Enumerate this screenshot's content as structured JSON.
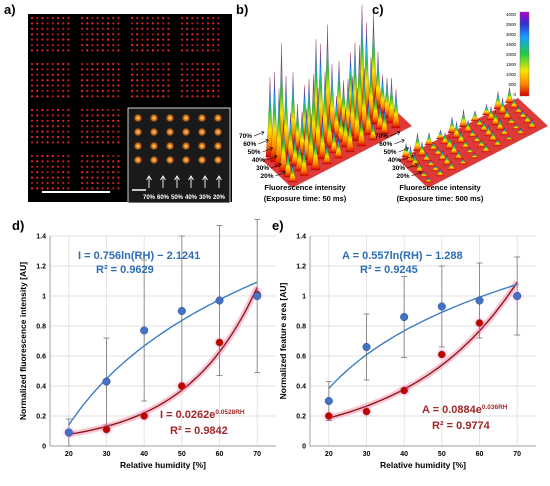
{
  "panels": {
    "a": {
      "letter": "a)",
      "inset_labels": [
        "70%",
        "60%",
        "50%",
        "40%",
        "30%",
        "20%"
      ]
    },
    "b": {
      "letter": "b)",
      "caption_line1": "Fluorescence intensity",
      "caption_line2": "(Exposure time: 50 ms)",
      "rh_labels": [
        "70%",
        "60%",
        "50%",
        "40%",
        "30%",
        "20%"
      ]
    },
    "c": {
      "letter": "c)",
      "caption_line1": "Fluorescence intensity",
      "caption_line2": "(Exposure time: 500 ms)",
      "rh_labels": [
        "70%",
        "60%",
        "50%",
        "40%",
        "30%",
        "20%"
      ],
      "colorbar_ticks": [
        "4000",
        "3500",
        "3000",
        "2500",
        "2000",
        "1500",
        "1000",
        "500",
        "0"
      ]
    }
  },
  "colors": {
    "blue_series": "#4472C4",
    "blue_fit": "#3B7DC4",
    "red_series": "#C00000",
    "red_fit": "#8B1A1A",
    "eq_blue": "#2E6DB4",
    "eq_red": "#A0282A"
  },
  "chart_data": [
    {
      "id": "d",
      "letter": "d)",
      "type": "scatter",
      "xlabel": "Relative humidity [%]",
      "ylabel": "Normalized fluorescence intensity [AU]",
      "xlim": [
        15,
        75
      ],
      "ylim": [
        0,
        1.4
      ],
      "xticks": [
        20,
        30,
        40,
        50,
        60,
        70
      ],
      "yticks": [
        0,
        0.2,
        0.4,
        0.6,
        0.8,
        1,
        1.2,
        1.4
      ],
      "grid": true,
      "series": [
        {
          "x": [
            20,
            30,
            40,
            50,
            60,
            70
          ],
          "y": [
            0.09,
            0.43,
            0.77,
            0.9,
            0.97,
            1.0
          ],
          "err": [
            0.09,
            0.29,
            0.47,
            0.5,
            0.5,
            0.51
          ],
          "fit": "log",
          "equation": "I = 0.756ln(RH) − 2.1241",
          "r2": "R² = 0.9629"
        },
        {
          "x": [
            20,
            30,
            40,
            50,
            60,
            70
          ],
          "y": [
            0.09,
            0.11,
            0.2,
            0.4,
            0.69,
            1.01
          ],
          "fit": "exp",
          "equation_main": "I = 0.0262e",
          "equation_exp": "0.0528RH",
          "r2": "R² = 0.9842"
        }
      ]
    },
    {
      "id": "e",
      "letter": "e)",
      "type": "scatter",
      "xlabel": "Relative humidity [%]",
      "ylabel": "Normalized feature area [AU]",
      "xlim": [
        15,
        75
      ],
      "ylim": [
        0,
        1.4
      ],
      "xticks": [
        20,
        30,
        40,
        50,
        60,
        70
      ],
      "yticks": [
        0,
        0.2,
        0.4,
        0.6,
        0.8,
        1,
        1.2,
        1.4
      ],
      "grid": true,
      "series": [
        {
          "x": [
            20,
            30,
            40,
            50,
            60,
            70
          ],
          "y": [
            0.3,
            0.66,
            0.86,
            0.93,
            0.97,
            1.0
          ],
          "err": [
            0.13,
            0.22,
            0.27,
            0.27,
            0.25,
            0.26
          ],
          "fit": "log",
          "equation": "A = 0.557ln(RH) − 1.288",
          "r2": "R² = 0.9245"
        },
        {
          "x": [
            20,
            30,
            40,
            50,
            60,
            70
          ],
          "y": [
            0.2,
            0.23,
            0.37,
            0.61,
            0.82,
            1.0
          ],
          "fit": "exp",
          "equation_main": "A = 0.0884e",
          "equation_exp": "0.036RH",
          "r2": "R² = 0.9774"
        }
      ]
    }
  ]
}
